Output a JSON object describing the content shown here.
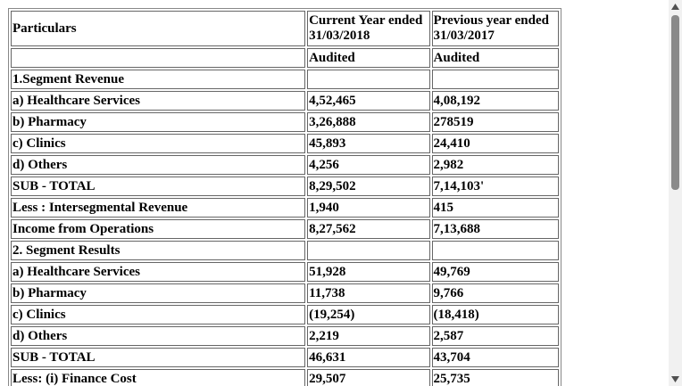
{
  "table": {
    "header": [
      "Particulars",
      "Current Year ended 31/03/2018",
      "Previous year ended 31/03/2017"
    ],
    "audit": [
      "Audited",
      "Audited"
    ],
    "rows": [
      {
        "label": "1.Segment Revenue"
      },
      {
        "label": "a) Healthcare Services",
        "current": "4,52,465",
        "previous": "4,08,192"
      },
      {
        "label": "b) Pharmacy",
        "current": "3,26,888",
        "previous": "278519"
      },
      {
        "label": "c) Clinics",
        "current": "45,893",
        "previous": "24,410"
      },
      {
        "label": "d) Others",
        "current": "4,256",
        "previous": "2,982"
      },
      {
        "label": "SUB - TOTAL",
        "current": "8,29,502",
        "previous": "7,14,103'"
      },
      {
        "label": "Less : Intersegmental Revenue",
        "current": "1,940",
        "previous": "415"
      },
      {
        "label": "Income from Operations",
        "current": "8,27,562",
        "previous": "7,13,688"
      },
      {
        "label": "2. Segment Results"
      },
      {
        "label": "a) Healthcare Services",
        "current": "51,928",
        "previous": "49,769"
      },
      {
        "label": "b) Pharmacy",
        "current": "11,738",
        "previous": "9,766"
      },
      {
        "label": "c) Clinics",
        "current": "(19,254)",
        "previous": "(18,418)"
      },
      {
        "label": "d) Others",
        "current": "2,219",
        "previous": "2,587"
      },
      {
        "label": "SUB - TOTAL",
        "current": "46,631",
        "previous": "43,704"
      },
      {
        "label": "Less: (i) Finance Cost",
        "current": "29,507",
        "previous": "25,735"
      }
    ]
  }
}
